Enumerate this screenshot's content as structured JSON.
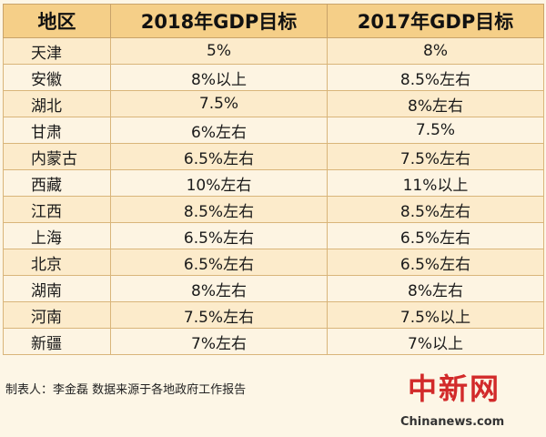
{
  "table": {
    "headers": [
      "地区",
      "2018年GDP目标",
      "2017年GDP目标"
    ],
    "rows": [
      {
        "region": "天津",
        "gdp2018": "5%",
        "gdp2017": "8%"
      },
      {
        "region": "安徽",
        "gdp2018": "8%以上",
        "gdp2017": "8.5%左右"
      },
      {
        "region": "湖北",
        "gdp2018": "7.5%",
        "gdp2017": "8%左右"
      },
      {
        "region": "甘肃",
        "gdp2018": "6%左右",
        "gdp2017": "7.5%"
      },
      {
        "region": "内蒙古",
        "gdp2018": "6.5%左右",
        "gdp2017": "7.5%左右"
      },
      {
        "region": "西藏",
        "gdp2018": "10%左右",
        "gdp2017": "11%以上"
      },
      {
        "region": "江西",
        "gdp2018": "8.5%左右",
        "gdp2017": "8.5%左右"
      },
      {
        "region": "上海",
        "gdp2018": "6.5%左右",
        "gdp2017": "6.5%左右"
      },
      {
        "region": "北京",
        "gdp2018": "6.5%左右",
        "gdp2017": "6.5%左右"
      },
      {
        "region": "湖南",
        "gdp2018": "8%左右",
        "gdp2017": "8%左右"
      },
      {
        "region": "河南",
        "gdp2018": "7.5%左右",
        "gdp2017": "7.5%以上"
      },
      {
        "region": "新疆",
        "gdp2018": "7%左右",
        "gdp2017": "7%以上"
      }
    ]
  },
  "footnote": "制表人：李金磊 数据来源于各地政府工作报告",
  "watermark": {
    "logo": "中新网",
    "site": "Chinanews.com"
  },
  "colors": {
    "header_bg": "#f5cf88",
    "row_odd": "#fcebcb",
    "row_even": "#fdf4e2",
    "logo_red": "#d22a2a"
  }
}
